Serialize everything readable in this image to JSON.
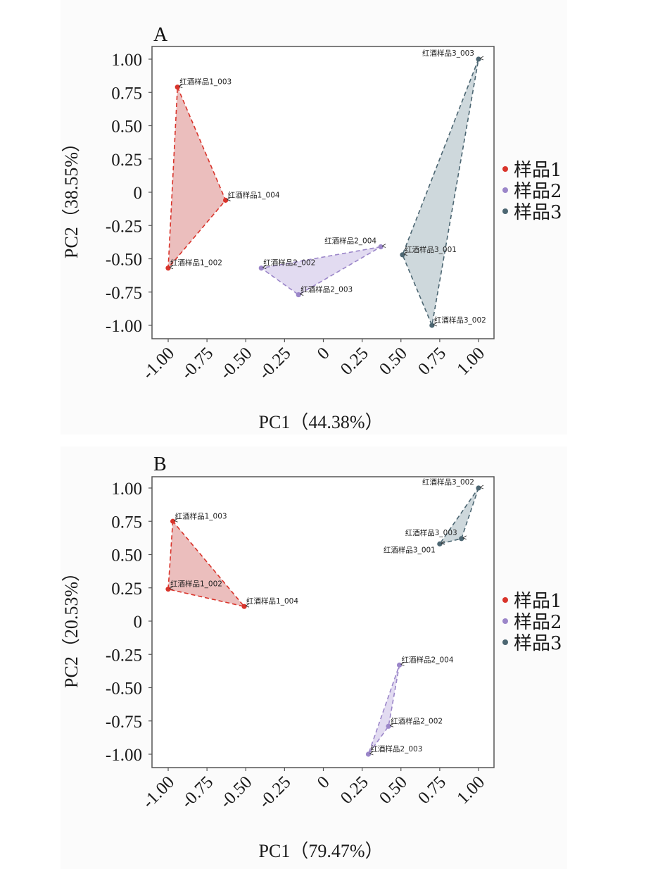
{
  "chart_data": [
    {
      "type": "scatter",
      "panel": "A",
      "xlabel": "PC1（44.38%）",
      "ylabel": "PC2（38.55%）",
      "xlim": [
        -1.1,
        1.1
      ],
      "ylim": [
        -1.1,
        1.1
      ],
      "xticks": [
        -1.0,
        -0.75,
        -0.5,
        -0.25,
        0,
        0.25,
        0.5,
        0.75,
        1.0
      ],
      "xtick_labels": [
        "-1.00",
        "-0.75",
        "-0.50",
        "-0.25",
        "0",
        "0.25",
        "0.50",
        "0.75",
        "1.00"
      ],
      "yticks": [
        1.0,
        0.75,
        0.5,
        0.25,
        0,
        -0.25,
        -0.5,
        -0.75,
        -1.0
      ],
      "ytick_labels": [
        "1.00",
        "0.75",
        "0.50",
        "0.25",
        "0",
        "-0.25",
        "-0.50",
        "-0.75",
        "-1.00"
      ],
      "grid": false,
      "legend_position": "right",
      "series": [
        {
          "name": "样品1",
          "color": "#d9342b",
          "fill": "#e8b3b1",
          "points": [
            {
              "label": "红酒样品1_003",
              "x": -0.94,
              "y": 0.79,
              "anchor": "right-up"
            },
            {
              "label": "红酒样品1_004",
              "x": -0.63,
              "y": -0.06,
              "anchor": "right-up"
            },
            {
              "label": "红酒样品1_002",
              "x": -1.0,
              "y": -0.57,
              "anchor": "right-up"
            }
          ]
        },
        {
          "name": "样品2",
          "color": "#9b86c9",
          "fill": "#ddd5ee",
          "points": [
            {
              "label": "红酒样品2_004",
              "x": 0.37,
              "y": -0.41,
              "anchor": "left-up"
            },
            {
              "label": "红酒样品2_002",
              "x": -0.4,
              "y": -0.57,
              "anchor": "right-up"
            },
            {
              "label": "红酒样品2_003",
              "x": -0.16,
              "y": -0.77,
              "anchor": "right-up"
            }
          ]
        },
        {
          "name": "样品3",
          "color": "#4c6672",
          "fill": "#c5d1d6",
          "points": [
            {
              "label": "红酒样品3_003",
              "x": 1.0,
              "y": 1.0,
              "anchor": "left-up"
            },
            {
              "label": "红酒样品3_001",
              "x": 0.51,
              "y": -0.47,
              "anchor": "right-up"
            },
            {
              "label": "红酒样品3_002",
              "x": 0.7,
              "y": -1.0,
              "anchor": "right-up"
            }
          ]
        }
      ]
    },
    {
      "type": "scatter",
      "panel": "B",
      "xlabel": "PC1（79.47%）",
      "ylabel": "PC2（20.53%）",
      "xlim": [
        -1.1,
        1.1
      ],
      "ylim": [
        -1.1,
        1.1
      ],
      "xticks": [
        -1.0,
        -0.75,
        -0.5,
        -0.25,
        0,
        0.25,
        0.5,
        0.75,
        1.0
      ],
      "xtick_labels": [
        "-1.00",
        "-0.75",
        "-0.50",
        "-0.25",
        "0",
        "0.25",
        "0.50",
        "0.75",
        "1.00"
      ],
      "yticks": [
        1.0,
        0.75,
        0.5,
        0.25,
        0,
        -0.25,
        -0.5,
        -0.75,
        -1.0
      ],
      "ytick_labels": [
        "1.00",
        "0.75",
        "0.50",
        "0.25",
        "0",
        "-0.25",
        "-0.50",
        "-0.75",
        "-1.00"
      ],
      "grid": false,
      "legend_position": "right",
      "series": [
        {
          "name": "样品1",
          "color": "#d9342b",
          "fill": "#e8b3b1",
          "points": [
            {
              "label": "红酒样品1_003",
              "x": -0.97,
              "y": 0.75,
              "anchor": "right-up"
            },
            {
              "label": "红酒样品1_002",
              "x": -1.0,
              "y": 0.24,
              "anchor": "right-up"
            },
            {
              "label": "红酒样品1_004",
              "x": -0.51,
              "y": 0.11,
              "anchor": "right-up"
            }
          ]
        },
        {
          "name": "样品2",
          "color": "#9b86c9",
          "fill": "#ddd5ee",
          "points": [
            {
              "label": "红酒样品2_004",
              "x": 0.49,
              "y": -0.33,
              "anchor": "right-up"
            },
            {
              "label": "红酒样品2_002",
              "x": 0.42,
              "y": -0.79,
              "anchor": "right-up"
            },
            {
              "label": "红酒样品2_003",
              "x": 0.29,
              "y": -1.0,
              "anchor": "right-up"
            }
          ]
        },
        {
          "name": "样品3",
          "color": "#4c6672",
          "fill": "#c5d1d6",
          "points": [
            {
              "label": "红酒样品3_002",
              "x": 1.0,
              "y": 1.0,
              "anchor": "left-up"
            },
            {
              "label": "红酒样品3_003",
              "x": 0.89,
              "y": 0.62,
              "anchor": "left-up"
            },
            {
              "label": "红酒样品3_001",
              "x": 0.75,
              "y": 0.58,
              "anchor": "left-down"
            }
          ]
        }
      ]
    }
  ],
  "legend": {
    "items": [
      "样品1",
      "样品2",
      "样品3"
    ]
  }
}
